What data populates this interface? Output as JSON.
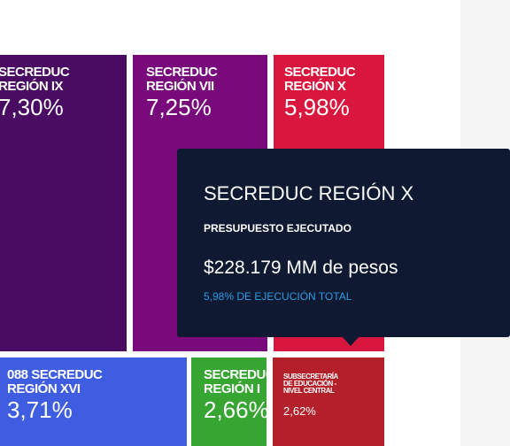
{
  "tiles": [
    {
      "label": [
        "SECREDUC",
        "REGIÓN IX"
      ],
      "value": "7,30%",
      "color": "#4a0b63"
    },
    {
      "label": [
        "SECREDUC",
        "REGIÓN VII"
      ],
      "value": "7,25%",
      "color": "#780a7c"
    },
    {
      "label": [
        "SECREDUC",
        "REGIÓN X"
      ],
      "value": "5,98%",
      "color": "#d9163d"
    },
    {
      "label": [
        "088 SECREDUC",
        "REGIÓN XVI"
      ],
      "value": "3,71%",
      "color": "#3f5de0"
    },
    {
      "label": [
        "SECREDUC",
        "REGIÓN I"
      ],
      "value": "2,66%",
      "color": "#36a532"
    },
    {
      "label": [
        "SUBSECRETARÍA",
        "DE EDUCACIÓN -",
        "NIVEL CENTRAL"
      ],
      "value": "2,62%",
      "color": "#b3202a"
    }
  ],
  "tooltip": {
    "title": "SECREDUC REGIÓN X",
    "subtitle": "PRESUPUESTO EJECUTADO",
    "amount": "$228.179 MM de pesos",
    "share": "5,98% DE EJECUCIÓN TOTAL"
  }
}
